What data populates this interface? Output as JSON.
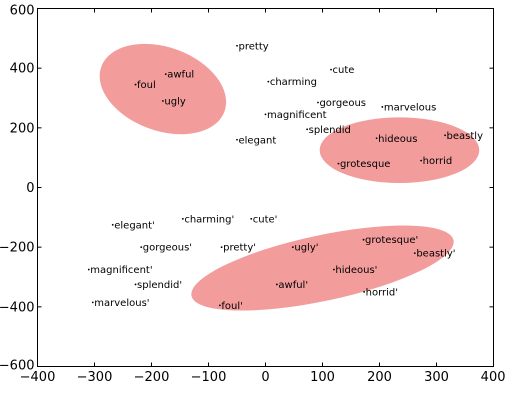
{
  "chart_data": {
    "type": "scatter",
    "title": "",
    "xlabel": "",
    "ylabel": "",
    "xlim": [
      -400,
      400
    ],
    "ylim": [
      -600,
      600
    ],
    "xticks": [
      -400,
      -300,
      -200,
      -100,
      0,
      100,
      200,
      300,
      400
    ],
    "yticks": [
      -600,
      -400,
      -200,
      0,
      200,
      400,
      600
    ],
    "grid": false,
    "legend": "none",
    "highlight_color": "#f08080",
    "points": [
      {
        "label": "pretty",
        "x": -50,
        "y": 475
      },
      {
        "label": "cute",
        "x": 115,
        "y": 395
      },
      {
        "label": "charming",
        "x": 5,
        "y": 355
      },
      {
        "label": "foul",
        "x": -228,
        "y": 345
      },
      {
        "label": "awful",
        "x": -175,
        "y": 380
      },
      {
        "label": "ugly",
        "x": -180,
        "y": 290
      },
      {
        "label": "gorgeous",
        "x": 92,
        "y": 285
      },
      {
        "label": "marvelous",
        "x": 205,
        "y": 270
      },
      {
        "label": "magnificent",
        "x": 0,
        "y": 245
      },
      {
        "label": "splendid",
        "x": 73,
        "y": 195
      },
      {
        "label": "elegant",
        "x": -50,
        "y": 160
      },
      {
        "label": "hideous",
        "x": 195,
        "y": 165
      },
      {
        "label": "beastly",
        "x": 315,
        "y": 175
      },
      {
        "label": "grotesque",
        "x": 128,
        "y": 80
      },
      {
        "label": "horrid",
        "x": 273,
        "y": 90
      },
      {
        "label": "elegant'",
        "x": -268,
        "y": -125
      },
      {
        "label": "charming'",
        "x": -145,
        "y": -105
      },
      {
        "label": "cute'",
        "x": -25,
        "y": -105
      },
      {
        "label": "gorgeous'",
        "x": -218,
        "y": -200
      },
      {
        "label": "pretty'",
        "x": -77,
        "y": -200
      },
      {
        "label": "ugly'",
        "x": 48,
        "y": -200
      },
      {
        "label": "grotesque'",
        "x": 172,
        "y": -175
      },
      {
        "label": "beastly'",
        "x": 262,
        "y": -220
      },
      {
        "label": "magnificent'",
        "x": -310,
        "y": -275
      },
      {
        "label": "hideous'",
        "x": 120,
        "y": -275
      },
      {
        "label": "splendid'",
        "x": -228,
        "y": -325
      },
      {
        "label": "awful'",
        "x": 20,
        "y": -325
      },
      {
        "label": "horrid'",
        "x": 173,
        "y": -350
      },
      {
        "label": "marvelous'",
        "x": -303,
        "y": -385
      },
      {
        "label": "foul'",
        "x": -80,
        "y": -395
      }
    ],
    "highlight_regions": [
      {
        "center": [
          -180,
          330
        ],
        "radii": [
          115,
          140
        ],
        "rotation": 20
      },
      {
        "center": [
          235,
          125
        ],
        "radii": [
          140,
          110
        ],
        "rotation": 0
      },
      {
        "center": [
          100,
          -270
        ],
        "radii": [
          235,
          110
        ],
        "rotation": -12
      }
    ]
  }
}
